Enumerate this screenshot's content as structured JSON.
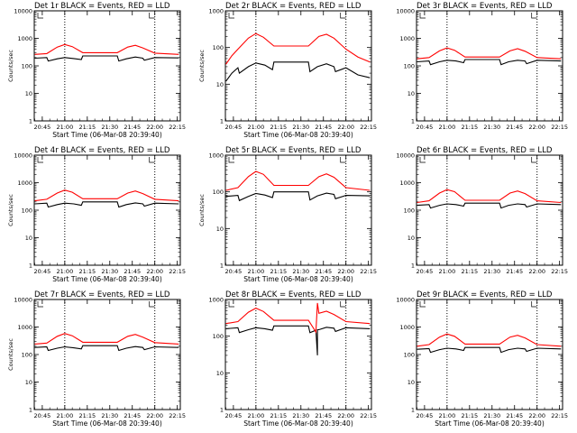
{
  "chart_data": [
    {
      "type": "line",
      "title": "Det 1r  BLACK = Events, RED = LLD",
      "xlabel": "Start Time (06-Mar-08 20:39:40)",
      "ylabel": "Counts/sec",
      "yscale": "log",
      "ylim": [
        1,
        10000
      ],
      "xlim": [
        "20:39:40",
        "22:17:00"
      ],
      "xticks": [
        "20:45",
        "21:00",
        "21:15",
        "21:30",
        "21:45",
        "22:00",
        "22:15"
      ],
      "yticks": [
        "1",
        "10",
        "100",
        "1000",
        "10000"
      ],
      "vlines": [
        "21:00",
        "22:00"
      ],
      "series": [
        {
          "name": "Events",
          "color": "#000000",
          "x": [
            "20:40",
            "20:48",
            "20:49",
            "20:55",
            "21:00",
            "21:06",
            "21:11",
            "21:12",
            "21:35",
            "21:36",
            "21:41",
            "21:47",
            "21:52",
            "21:53",
            "22:00",
            "22:16"
          ],
          "values": [
            190,
            200,
            150,
            180,
            200,
            185,
            170,
            230,
            230,
            150,
            180,
            210,
            190,
            160,
            200,
            195
          ]
        },
        {
          "name": "LLD",
          "color": "#ff0000",
          "x": [
            "20:40",
            "20:48",
            "20:55",
            "21:00",
            "21:05",
            "21:12",
            "21:35",
            "21:42",
            "21:47",
            "21:52",
            "22:00",
            "22:16"
          ],
          "values": [
            260,
            280,
            480,
            600,
            500,
            300,
            300,
            480,
            560,
            450,
            290,
            260
          ]
        }
      ]
    },
    {
      "type": "line",
      "title": "Det 2r  BLACK = Events, RED = LLD",
      "xlabel": "Start Time (06-Mar-08 20:39:40)",
      "ylabel": "Counts/sec",
      "yscale": "log",
      "ylim": [
        1,
        1000
      ],
      "xlim": [
        "20:39:40",
        "22:17:00"
      ],
      "xticks": [
        "20:45",
        "21:00",
        "21:15",
        "21:30",
        "21:45",
        "22:00",
        "22:15"
      ],
      "yticks": [
        "1",
        "10",
        "100",
        "1000"
      ],
      "vlines": [
        "21:00",
        "22:00"
      ],
      "series": [
        {
          "name": "Events",
          "color": "#000000",
          "x": [
            "20:40",
            "20:44",
            "20:48",
            "20:49",
            "20:55",
            "21:00",
            "21:06",
            "21:11",
            "21:12",
            "21:35",
            "21:36",
            "21:41",
            "21:47",
            "21:52",
            "21:53",
            "22:00",
            "22:08",
            "22:16"
          ],
          "values": [
            12,
            20,
            28,
            20,
            30,
            38,
            33,
            25,
            40,
            40,
            22,
            30,
            36,
            30,
            22,
            28,
            18,
            15
          ]
        },
        {
          "name": "LLD",
          "color": "#ff0000",
          "x": [
            "20:40",
            "20:44",
            "20:48",
            "20:55",
            "21:00",
            "21:05",
            "21:12",
            "21:35",
            "21:42",
            "21:47",
            "21:52",
            "22:00",
            "22:08",
            "22:16"
          ],
          "values": [
            35,
            60,
            90,
            180,
            240,
            190,
            110,
            110,
            200,
            230,
            180,
            90,
            55,
            40
          ]
        }
      ]
    },
    {
      "type": "line",
      "title": "Det 3r  BLACK = Events, RED = LLD",
      "xlabel": "",
      "ylabel": "",
      "yscale": "log",
      "ylim": [
        1,
        10000
      ],
      "xlim": [
        "20:39:40",
        "22:17:00"
      ],
      "xticks": [
        "20:45",
        "21:00",
        "21:15",
        "21:30",
        "21:45",
        "22:00",
        "22:15"
      ],
      "yticks": [
        "1",
        "10",
        "100",
        "1000",
        "10000"
      ],
      "vlines": [
        "21:00",
        "22:00"
      ],
      "series": [
        {
          "name": "Events",
          "color": "#000000",
          "x": [
            "20:40",
            "20:48",
            "20:49",
            "20:55",
            "21:00",
            "21:06",
            "21:11",
            "21:12",
            "21:35",
            "21:36",
            "21:41",
            "21:47",
            "21:52",
            "21:53",
            "22:00",
            "22:16"
          ],
          "values": [
            140,
            150,
            110,
            140,
            160,
            150,
            130,
            170,
            170,
            110,
            140,
            160,
            150,
            120,
            160,
            150
          ]
        },
        {
          "name": "LLD",
          "color": "#ff0000",
          "x": [
            "20:40",
            "20:48",
            "20:55",
            "21:00",
            "21:05",
            "21:12",
            "21:35",
            "21:42",
            "21:47",
            "21:52",
            "22:00",
            "22:16"
          ],
          "values": [
            180,
            200,
            350,
            450,
            370,
            210,
            210,
            350,
            420,
            340,
            200,
            180
          ]
        }
      ]
    },
    {
      "type": "line",
      "title": "Det 4r  BLACK = Events, RED = LLD",
      "xlabel": "Start Time (06-Mar-08 20:39:40)",
      "ylabel": "Counts/sec",
      "yscale": "log",
      "ylim": [
        1,
        10000
      ],
      "xlim": [
        "20:39:40",
        "22:17:00"
      ],
      "xticks": [
        "20:45",
        "21:00",
        "21:15",
        "21:30",
        "21:45",
        "22:00",
        "22:15"
      ],
      "yticks": [
        "1",
        "10",
        "100",
        "1000",
        "10000"
      ],
      "vlines": [
        "21:00",
        "22:00"
      ],
      "series": [
        {
          "name": "Events",
          "color": "#000000",
          "x": [
            "20:40",
            "20:48",
            "20:49",
            "20:55",
            "21:00",
            "21:06",
            "21:11",
            "21:12",
            "21:35",
            "21:36",
            "21:41",
            "21:47",
            "21:52",
            "21:53",
            "22:00",
            "22:16"
          ],
          "values": [
            170,
            180,
            130,
            160,
            180,
            170,
            150,
            200,
            200,
            130,
            160,
            185,
            170,
            140,
            180,
            170
          ]
        },
        {
          "name": "LLD",
          "color": "#ff0000",
          "x": [
            "20:40",
            "20:48",
            "20:55",
            "21:00",
            "21:05",
            "21:12",
            "21:35",
            "21:42",
            "21:47",
            "21:52",
            "22:00",
            "22:16"
          ],
          "values": [
            220,
            250,
            420,
            540,
            450,
            260,
            260,
            420,
            500,
            400,
            250,
            220
          ]
        }
      ]
    },
    {
      "type": "line",
      "title": "Det 5r  BLACK = Events, RED = LLD",
      "xlabel": "Start Time (06-Mar-08 20:39:40)",
      "ylabel": "Counts/sec",
      "yscale": "log",
      "ylim": [
        1,
        1000
      ],
      "xlim": [
        "20:39:40",
        "22:17:00"
      ],
      "xticks": [
        "20:45",
        "21:00",
        "21:15",
        "21:30",
        "21:45",
        "22:00",
        "22:15"
      ],
      "yticks": [
        "1",
        "10",
        "100",
        "1000"
      ],
      "vlines": [
        "21:00",
        "22:00"
      ],
      "series": [
        {
          "name": "Events",
          "color": "#000000",
          "x": [
            "20:40",
            "20:48",
            "20:49",
            "20:55",
            "21:00",
            "21:06",
            "21:11",
            "21:12",
            "21:35",
            "21:36",
            "21:41",
            "21:47",
            "21:52",
            "21:53",
            "22:00",
            "22:16"
          ],
          "values": [
            75,
            80,
            58,
            75,
            90,
            82,
            70,
            100,
            100,
            60,
            78,
            92,
            85,
            65,
            80,
            78
          ]
        },
        {
          "name": "LLD",
          "color": "#ff0000",
          "x": [
            "20:40",
            "20:48",
            "20:55",
            "21:00",
            "21:05",
            "21:12",
            "21:35",
            "21:42",
            "21:47",
            "21:52",
            "22:00",
            "22:16"
          ],
          "values": [
            110,
            130,
            260,
            360,
            300,
            150,
            150,
            260,
            310,
            250,
            130,
            110
          ]
        }
      ]
    },
    {
      "type": "line",
      "title": "Det 6r  BLACK = Events, RED = LLD",
      "xlabel": "",
      "ylabel": "",
      "yscale": "log",
      "ylim": [
        1,
        10000
      ],
      "xlim": [
        "20:39:40",
        "22:17:00"
      ],
      "xticks": [
        "20:45",
        "21:00",
        "21:15",
        "21:30",
        "21:45",
        "22:00",
        "22:15"
      ],
      "yticks": [
        "1",
        "10",
        "100",
        "1000",
        "10000"
      ],
      "vlines": [
        "21:00",
        "22:00"
      ],
      "series": [
        {
          "name": "Events",
          "color": "#000000",
          "x": [
            "20:40",
            "20:48",
            "20:49",
            "20:55",
            "21:00",
            "21:06",
            "21:11",
            "21:12",
            "21:35",
            "21:36",
            "21:41",
            "21:47",
            "21:52",
            "21:53",
            "22:00",
            "22:16"
          ],
          "values": [
            150,
            160,
            120,
            150,
            170,
            160,
            140,
            180,
            180,
            120,
            150,
            170,
            160,
            130,
            170,
            160
          ]
        },
        {
          "name": "LLD",
          "color": "#ff0000",
          "x": [
            "20:40",
            "20:48",
            "20:55",
            "21:00",
            "21:05",
            "21:12",
            "21:35",
            "21:42",
            "21:47",
            "21:52",
            "22:00",
            "22:16"
          ],
          "values": [
            190,
            220,
            420,
            560,
            470,
            230,
            230,
            420,
            500,
            400,
            220,
            190
          ]
        }
      ]
    },
    {
      "type": "line",
      "title": "Det 7r  BLACK = Events, RED = LLD",
      "xlabel": "Start Time (06-Mar-08 20:39:40)",
      "ylabel": "Counts/sec",
      "yscale": "log",
      "ylim": [
        1,
        10000
      ],
      "xlim": [
        "20:39:40",
        "22:17:00"
      ],
      "xticks": [
        "20:45",
        "21:00",
        "21:15",
        "21:30",
        "21:45",
        "22:00",
        "22:15"
      ],
      "yticks": [
        "1",
        "10",
        "100",
        "1000",
        "10000"
      ],
      "vlines": [
        "21:00",
        "22:00"
      ],
      "series": [
        {
          "name": "Events",
          "color": "#000000",
          "x": [
            "20:40",
            "20:48",
            "20:49",
            "20:55",
            "21:00",
            "21:06",
            "21:11",
            "21:12",
            "21:35",
            "21:36",
            "21:41",
            "21:47",
            "21:52",
            "21:53",
            "22:00",
            "22:16"
          ],
          "values": [
            180,
            190,
            140,
            170,
            190,
            175,
            160,
            210,
            210,
            140,
            170,
            195,
            180,
            150,
            190,
            180
          ]
        },
        {
          "name": "LLD",
          "color": "#ff0000",
          "x": [
            "20:40",
            "20:48",
            "20:55",
            "21:00",
            "21:05",
            "21:12",
            "21:35",
            "21:42",
            "21:47",
            "21:52",
            "22:00",
            "22:16"
          ],
          "values": [
            240,
            260,
            460,
            580,
            480,
            280,
            280,
            460,
            540,
            430,
            270,
            240
          ]
        }
      ]
    },
    {
      "type": "line",
      "title": "Det 8r  BLACK = Events, RED = LLD",
      "xlabel": "Start Time (06-Mar-08 20:39:40)",
      "ylabel": "",
      "yscale": "log",
      "ylim": [
        1,
        1000
      ],
      "xlim": [
        "20:39:40",
        "22:17:00"
      ],
      "xticks": [
        "20:45",
        "21:00",
        "21:15",
        "21:30",
        "21:45",
        "22:00",
        "22:15"
      ],
      "yticks": [
        "1",
        "10",
        "100",
        "1000"
      ],
      "vlines": [
        "21:00",
        "22:00"
      ],
      "series": [
        {
          "name": "Events",
          "color": "#000000",
          "x": [
            "20:40",
            "20:48",
            "20:49",
            "20:55",
            "21:00",
            "21:06",
            "21:11",
            "21:12",
            "21:35",
            "21:36",
            "21:40",
            "21:41",
            "21:41",
            "21:42",
            "21:47",
            "21:52",
            "21:53",
            "22:00",
            "22:16"
          ],
          "values": [
            160,
            170,
            125,
            150,
            170,
            160,
            145,
            190,
            190,
            125,
            145,
            30,
            150,
            150,
            175,
            165,
            135,
            170,
            160
          ]
        },
        {
          "name": "LLD",
          "color": "#ff0000",
          "x": [
            "20:40",
            "20:48",
            "20:55",
            "21:00",
            "21:05",
            "21:12",
            "21:35",
            "21:40",
            "21:41",
            "21:42",
            "21:47",
            "21:52",
            "22:00",
            "22:16"
          ],
          "values": [
            220,
            250,
            450,
            580,
            470,
            270,
            270,
            130,
            800,
            420,
            480,
            390,
            250,
            220
          ]
        }
      ]
    },
    {
      "type": "line",
      "title": "Det 9r  BLACK = Events, RED = LLD",
      "xlabel": "Start Time (06-Mar-08 20:39:40)",
      "ylabel": "",
      "yscale": "log",
      "ylim": [
        1,
        10000
      ],
      "xlim": [
        "20:39:40",
        "22:17:00"
      ],
      "xticks": [
        "20:45",
        "21:00",
        "21:15",
        "21:30",
        "21:45",
        "22:00",
        "22:15"
      ],
      "yticks": [
        "1",
        "10",
        "100",
        "1000",
        "10000"
      ],
      "vlines": [
        "21:00",
        "22:00"
      ],
      "series": [
        {
          "name": "Events",
          "color": "#000000",
          "x": [
            "20:40",
            "20:48",
            "20:49",
            "20:55",
            "21:00",
            "21:06",
            "21:11",
            "21:12",
            "21:35",
            "21:36",
            "21:41",
            "21:47",
            "21:52",
            "21:53",
            "22:00",
            "22:16"
          ],
          "values": [
            155,
            165,
            120,
            150,
            170,
            160,
            140,
            180,
            180,
            120,
            150,
            170,
            160,
            130,
            170,
            160
          ]
        },
        {
          "name": "LLD",
          "color": "#ff0000",
          "x": [
            "20:40",
            "20:48",
            "20:55",
            "21:00",
            "21:05",
            "21:12",
            "21:35",
            "21:42",
            "21:47",
            "21:52",
            "22:00",
            "22:16"
          ],
          "values": [
            200,
            230,
            430,
            560,
            460,
            240,
            240,
            430,
            500,
            400,
            230,
            200
          ]
        }
      ]
    }
  ]
}
